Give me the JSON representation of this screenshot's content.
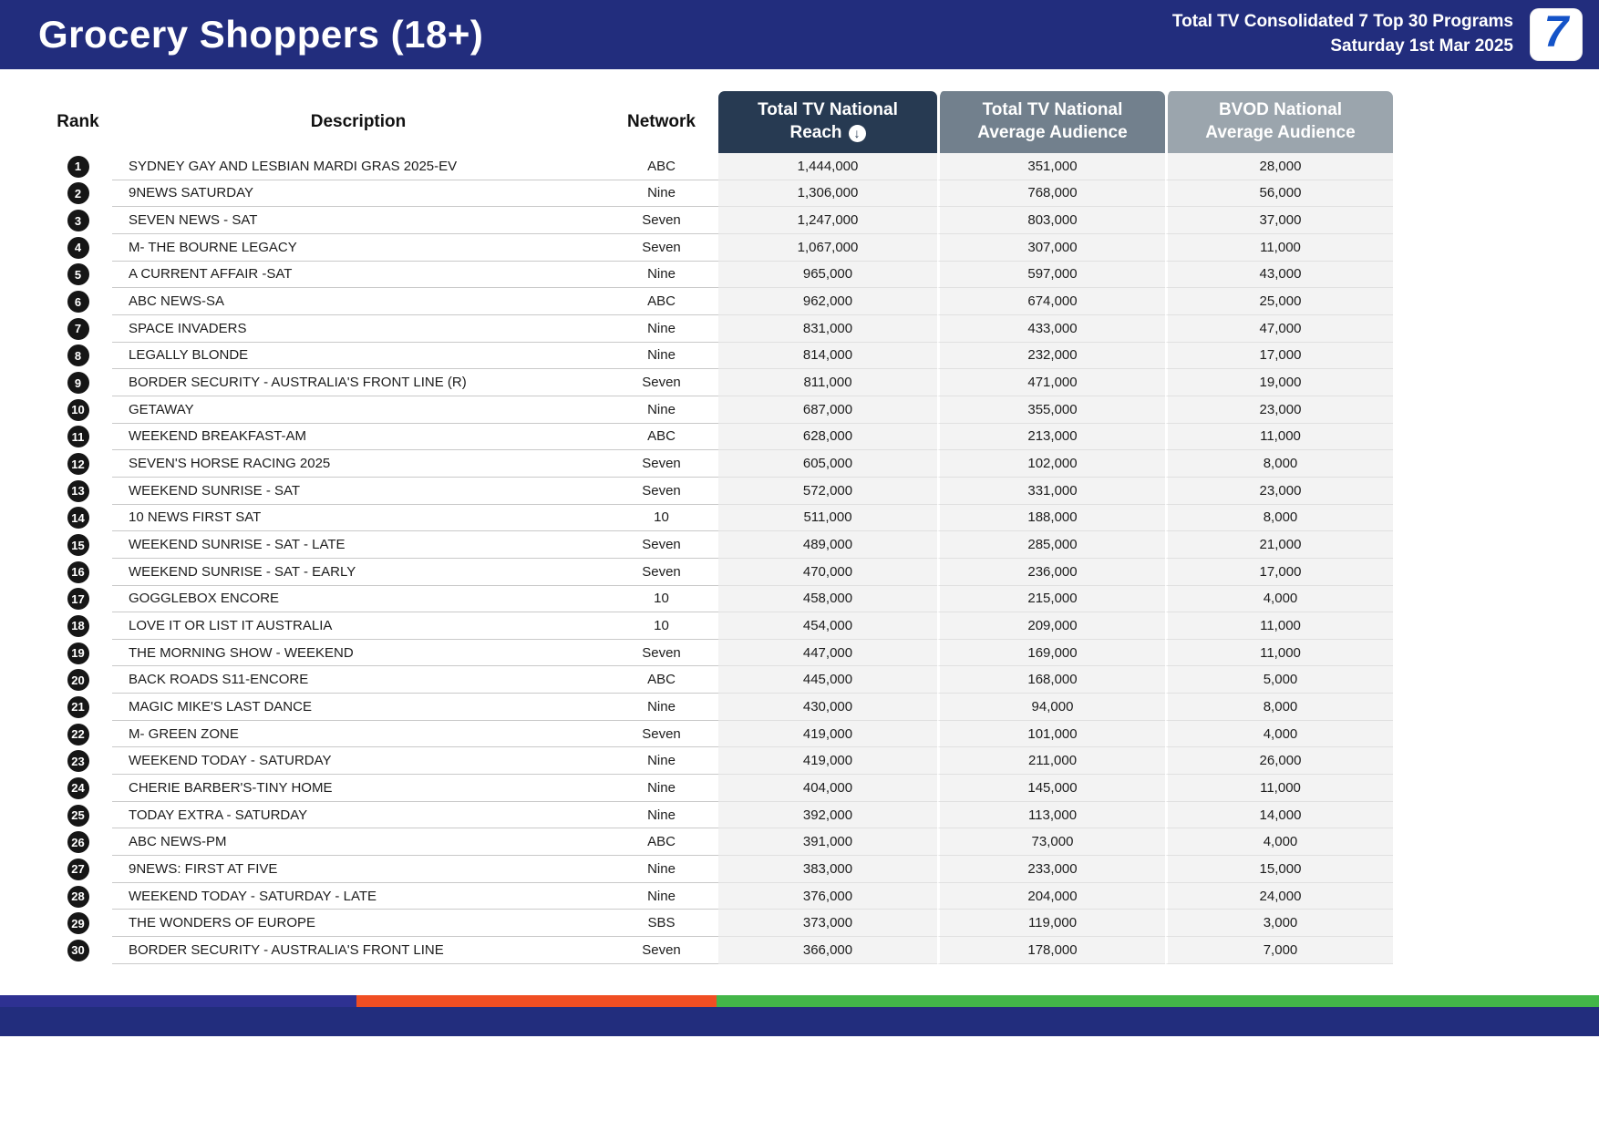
{
  "header": {
    "title": "Grocery Shoppers (18+)",
    "subtitle_line1": "Total TV Consolidated 7 Top 30 Programs",
    "subtitle_line2": "Saturday 1st Mar 2025",
    "logo_text": "7"
  },
  "icons": {
    "sort_desc_glyph": "↓",
    "sort_desc_name": "arrow-down-circle"
  },
  "colors": {
    "topbar_navy": "#222D7D",
    "reach_header": "#273A52",
    "avg_header": "#72808D",
    "bvod_header": "#9BA5AD",
    "numeric_cell_bg": "#f3f3f3",
    "rank_badge": "#161616",
    "logo_blue": "#1453C8"
  },
  "table": {
    "columns": {
      "rank": "Rank",
      "description": "Description",
      "network": "Network",
      "reach_line1": "Total TV National",
      "reach_line2": "Reach",
      "avg_line1": "Total TV National",
      "avg_line2": "Average Audience",
      "bvod_line1": "BVOD National",
      "bvod_line2": "Average Audience"
    },
    "rows": [
      {
        "rank": "1",
        "description": "SYDNEY GAY AND LESBIAN MARDI GRAS 2025-EV",
        "network": "ABC",
        "reach": "1,444,000",
        "avg": "351,000",
        "bvod": "28,000"
      },
      {
        "rank": "2",
        "description": "9NEWS SATURDAY",
        "network": "Nine",
        "reach": "1,306,000",
        "avg": "768,000",
        "bvod": "56,000"
      },
      {
        "rank": "3",
        "description": "SEVEN NEWS - SAT",
        "network": "Seven",
        "reach": "1,247,000",
        "avg": "803,000",
        "bvod": "37,000"
      },
      {
        "rank": "4",
        "description": "M- THE BOURNE LEGACY",
        "network": "Seven",
        "reach": "1,067,000",
        "avg": "307,000",
        "bvod": "11,000"
      },
      {
        "rank": "5",
        "description": "A CURRENT AFFAIR -SAT",
        "network": "Nine",
        "reach": "965,000",
        "avg": "597,000",
        "bvod": "43,000"
      },
      {
        "rank": "6",
        "description": "ABC NEWS-SA",
        "network": "ABC",
        "reach": "962,000",
        "avg": "674,000",
        "bvod": "25,000"
      },
      {
        "rank": "7",
        "description": "SPACE INVADERS",
        "network": "Nine",
        "reach": "831,000",
        "avg": "433,000",
        "bvod": "47,000"
      },
      {
        "rank": "8",
        "description": "LEGALLY BLONDE",
        "network": "Nine",
        "reach": "814,000",
        "avg": "232,000",
        "bvod": "17,000"
      },
      {
        "rank": "9",
        "description": "BORDER SECURITY - AUSTRALIA'S FRONT LINE (R)",
        "network": "Seven",
        "reach": "811,000",
        "avg": "471,000",
        "bvod": "19,000"
      },
      {
        "rank": "10",
        "description": "GETAWAY",
        "network": "Nine",
        "reach": "687,000",
        "avg": "355,000",
        "bvod": "23,000"
      },
      {
        "rank": "11",
        "description": "WEEKEND BREAKFAST-AM",
        "network": "ABC",
        "reach": "628,000",
        "avg": "213,000",
        "bvod": "11,000"
      },
      {
        "rank": "12",
        "description": "SEVEN'S HORSE RACING 2025",
        "network": "Seven",
        "reach": "605,000",
        "avg": "102,000",
        "bvod": "8,000"
      },
      {
        "rank": "13",
        "description": "WEEKEND SUNRISE - SAT",
        "network": "Seven",
        "reach": "572,000",
        "avg": "331,000",
        "bvod": "23,000"
      },
      {
        "rank": "14",
        "description": "10 NEWS FIRST SAT",
        "network": "10",
        "reach": "511,000",
        "avg": "188,000",
        "bvod": "8,000"
      },
      {
        "rank": "15",
        "description": "WEEKEND SUNRISE - SAT - LATE",
        "network": "Seven",
        "reach": "489,000",
        "avg": "285,000",
        "bvod": "21,000"
      },
      {
        "rank": "16",
        "description": "WEEKEND SUNRISE - SAT - EARLY",
        "network": "Seven",
        "reach": "470,000",
        "avg": "236,000",
        "bvod": "17,000"
      },
      {
        "rank": "17",
        "description": "GOGGLEBOX ENCORE",
        "network": "10",
        "reach": "458,000",
        "avg": "215,000",
        "bvod": "4,000"
      },
      {
        "rank": "18",
        "description": "LOVE IT OR LIST IT AUSTRALIA",
        "network": "10",
        "reach": "454,000",
        "avg": "209,000",
        "bvod": "11,000"
      },
      {
        "rank": "19",
        "description": "THE MORNING SHOW - WEEKEND",
        "network": "Seven",
        "reach": "447,000",
        "avg": "169,000",
        "bvod": "11,000"
      },
      {
        "rank": "20",
        "description": "BACK ROADS S11-ENCORE",
        "network": "ABC",
        "reach": "445,000",
        "avg": "168,000",
        "bvod": "5,000"
      },
      {
        "rank": "21",
        "description": "MAGIC MIKE'S LAST DANCE",
        "network": "Nine",
        "reach": "430,000",
        "avg": "94,000",
        "bvod": "8,000"
      },
      {
        "rank": "22",
        "description": "M- GREEN ZONE",
        "network": "Seven",
        "reach": "419,000",
        "avg": "101,000",
        "bvod": "4,000"
      },
      {
        "rank": "23",
        "description": "WEEKEND TODAY - SATURDAY",
        "network": "Nine",
        "reach": "419,000",
        "avg": "211,000",
        "bvod": "26,000"
      },
      {
        "rank": "24",
        "description": "CHERIE BARBER'S-TINY HOME",
        "network": "Nine",
        "reach": "404,000",
        "avg": "145,000",
        "bvod": "11,000"
      },
      {
        "rank": "25",
        "description": "TODAY EXTRA - SATURDAY",
        "network": "Nine",
        "reach": "392,000",
        "avg": "113,000",
        "bvod": "14,000"
      },
      {
        "rank": "26",
        "description": "ABC NEWS-PM",
        "network": "ABC",
        "reach": "391,000",
        "avg": "73,000",
        "bvod": "4,000"
      },
      {
        "rank": "27",
        "description": "9NEWS: FIRST AT FIVE",
        "network": "Nine",
        "reach": "383,000",
        "avg": "233,000",
        "bvod": "15,000"
      },
      {
        "rank": "28",
        "description": "WEEKEND TODAY - SATURDAY - LATE",
        "network": "Nine",
        "reach": "376,000",
        "avg": "204,000",
        "bvod": "24,000"
      },
      {
        "rank": "29",
        "description": "THE WONDERS OF EUROPE",
        "network": "SBS",
        "reach": "373,000",
        "avg": "119,000",
        "bvod": "3,000"
      },
      {
        "rank": "30",
        "description": "BORDER SECURITY - AUSTRALIA'S FRONT LINE",
        "network": "Seven",
        "reach": "366,000",
        "avg": "178,000",
        "bvod": "7,000"
      }
    ]
  },
  "footer": {
    "stripe_segments": [
      {
        "color": "#2E3192",
        "width_pct": 22.3
      },
      {
        "color": "#F04E23",
        "width_pct": 22.5
      },
      {
        "color": "#43B649",
        "width_pct": 55.2
      }
    ],
    "bar_color": "#222D7D"
  }
}
